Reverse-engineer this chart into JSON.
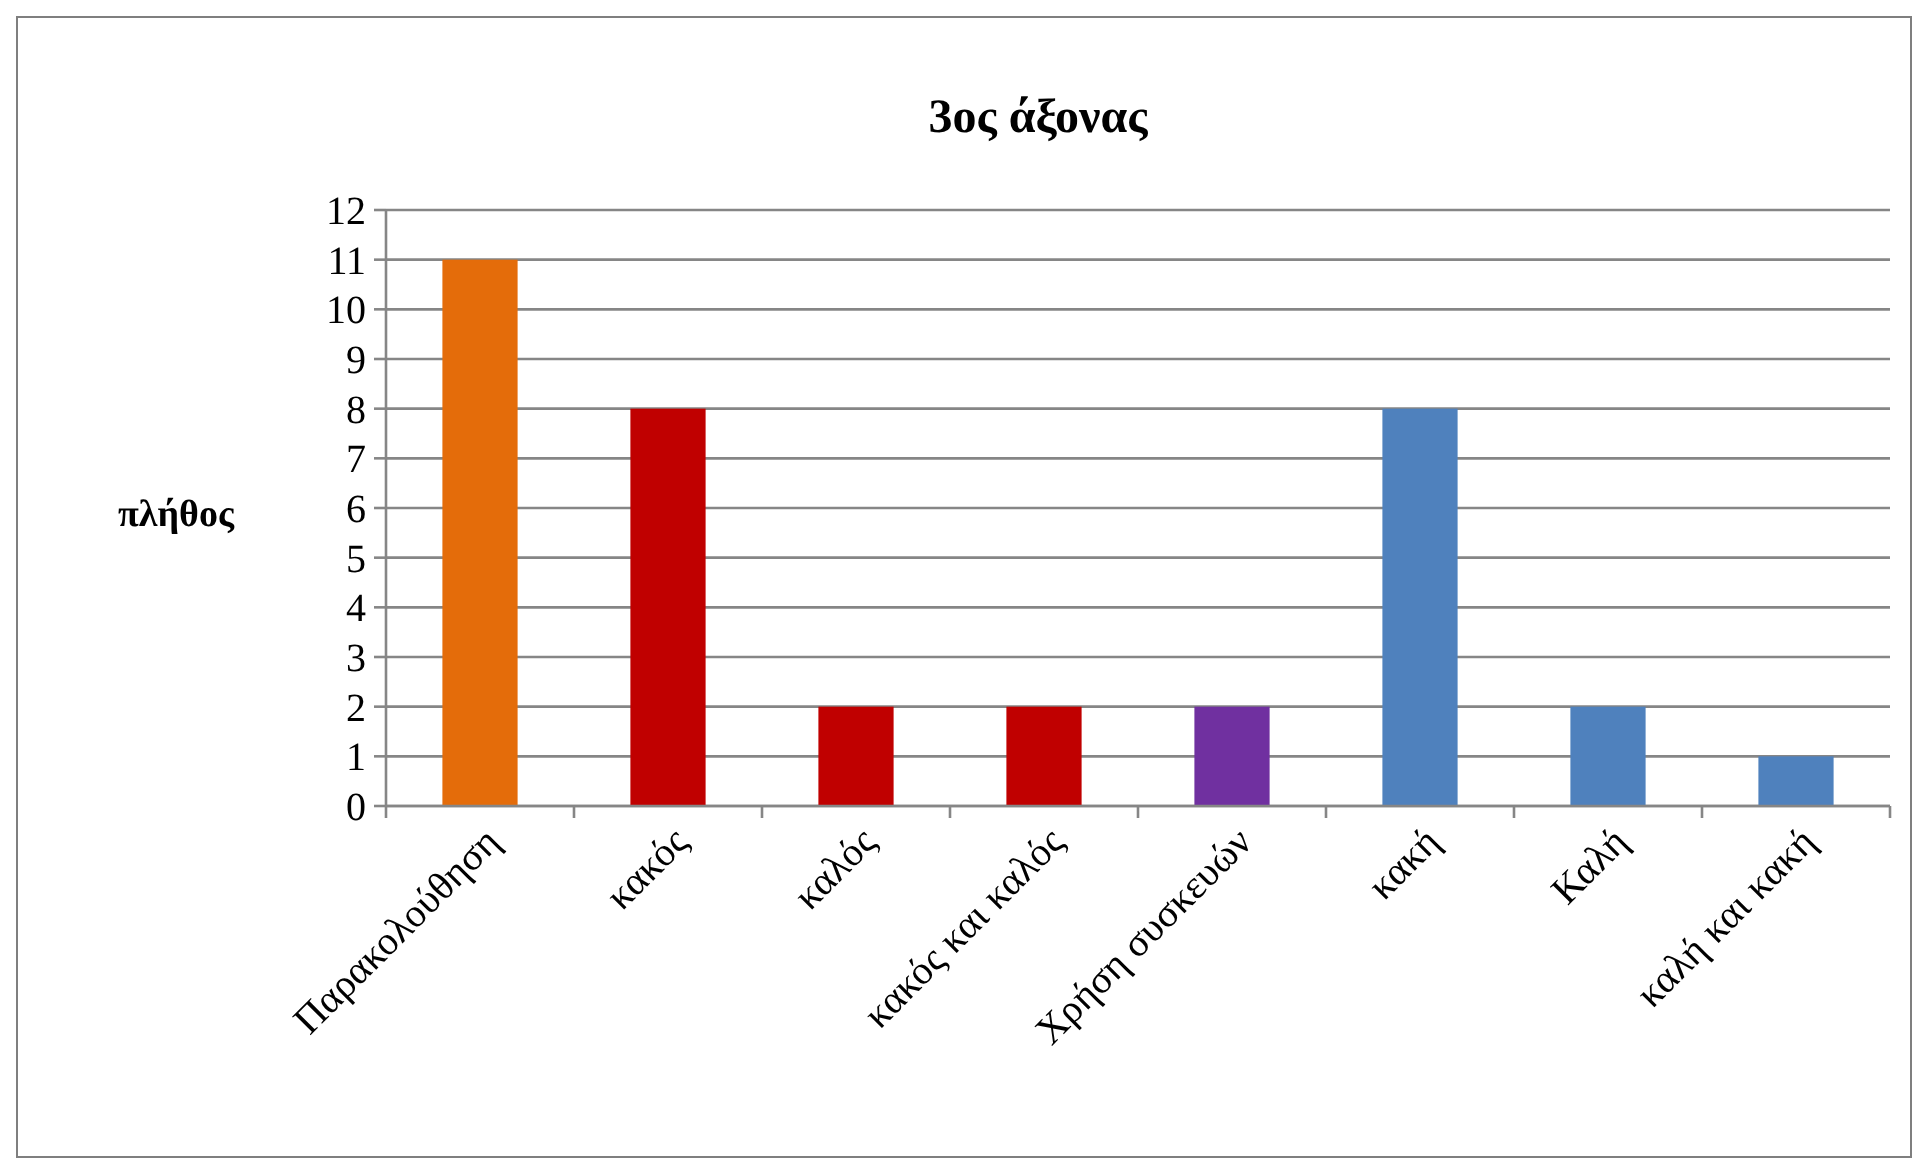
{
  "chart_data": {
    "type": "bar",
    "title": "3ος άξονας",
    "ylabel": "πλήθος",
    "categories": [
      "Παρακολούθηση",
      "κακός",
      "καλός",
      "κακός και καλός",
      "Χρήση συσκευών",
      "κακή",
      "Καλή",
      "καλή και κακή"
    ],
    "values": [
      11,
      8,
      2,
      2,
      2,
      8,
      2,
      1
    ],
    "colors": [
      "#e46c0a",
      "#c00000",
      "#c00000",
      "#c00000",
      "#7030a0",
      "#4f81bd",
      "#4f81bd",
      "#4f81bd"
    ],
    "ylim": [
      0,
      12
    ],
    "yticks": [
      0,
      1,
      2,
      3,
      4,
      5,
      6,
      7,
      8,
      9,
      10,
      11,
      12
    ],
    "grid": "y"
  }
}
